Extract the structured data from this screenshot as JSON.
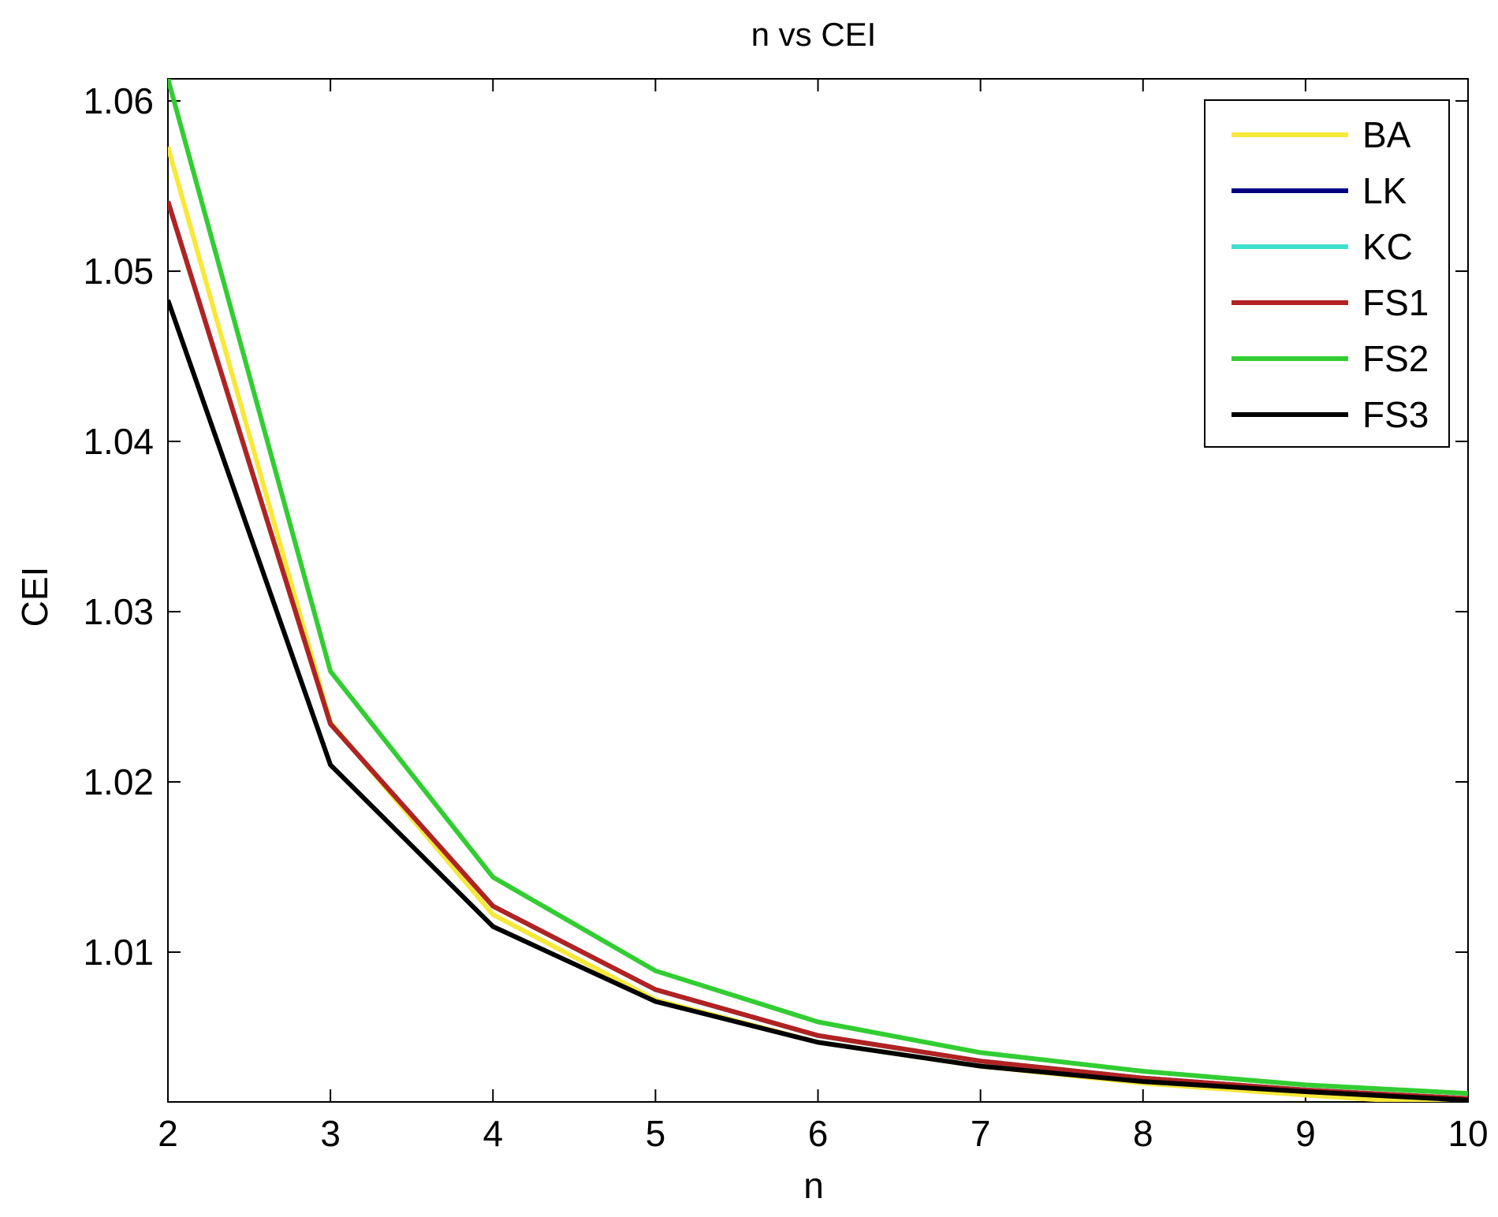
{
  "chart_data": {
    "type": "line",
    "title": "n vs CEI",
    "xlabel": "n",
    "ylabel": "CEI",
    "xlim": [
      2,
      10
    ],
    "ylim": [
      1.0012,
      1.0613
    ],
    "xticks": [
      2,
      3,
      4,
      5,
      6,
      7,
      8,
      9,
      10
    ],
    "xtick_labels": [
      "2",
      "3",
      "4",
      "5",
      "6",
      "7",
      "8",
      "9",
      "10"
    ],
    "yticks": [
      1.01,
      1.02,
      1.03,
      1.04,
      1.05,
      1.06
    ],
    "ytick_labels": [
      "1.01",
      "1.02",
      "1.03",
      "1.04",
      "1.05",
      "1.06"
    ],
    "grid": false,
    "legend_position": "top-right",
    "x": [
      2,
      3,
      4,
      5,
      6,
      7,
      8,
      9,
      10
    ],
    "series": [
      {
        "name": "BA",
        "color": "#f7e83a",
        "values": [
          1.0573,
          1.0235,
          1.0122,
          1.0072,
          1.0047,
          1.0033,
          1.0023,
          1.0016,
          1.001
        ]
      },
      {
        "name": "LK",
        "color": "#000080",
        "values": [
          1.0541,
          1.0234,
          1.0127,
          1.0078,
          1.0051,
          1.0036,
          1.0026,
          1.0019,
          1.0014
        ]
      },
      {
        "name": "KC",
        "color": "#40e0d0",
        "values": [
          1.0541,
          1.0234,
          1.0127,
          1.0078,
          1.0051,
          1.0036,
          1.0026,
          1.0019,
          1.0014
        ]
      },
      {
        "name": "FS1",
        "color": "#b22222",
        "values": [
          1.0541,
          1.0234,
          1.0127,
          1.0078,
          1.0051,
          1.0036,
          1.0026,
          1.0019,
          1.0014
        ]
      },
      {
        "name": "FS2",
        "color": "#32cd32",
        "values": [
          1.0613,
          1.0265,
          1.0144,
          1.0089,
          1.0059,
          1.0041,
          1.003,
          1.0022,
          1.0017
        ]
      },
      {
        "name": "FS3",
        "color": "#000000",
        "values": [
          1.0483,
          1.021,
          1.0115,
          1.0071,
          1.0047,
          1.0033,
          1.0024,
          1.0018,
          1.0013
        ]
      }
    ]
  }
}
